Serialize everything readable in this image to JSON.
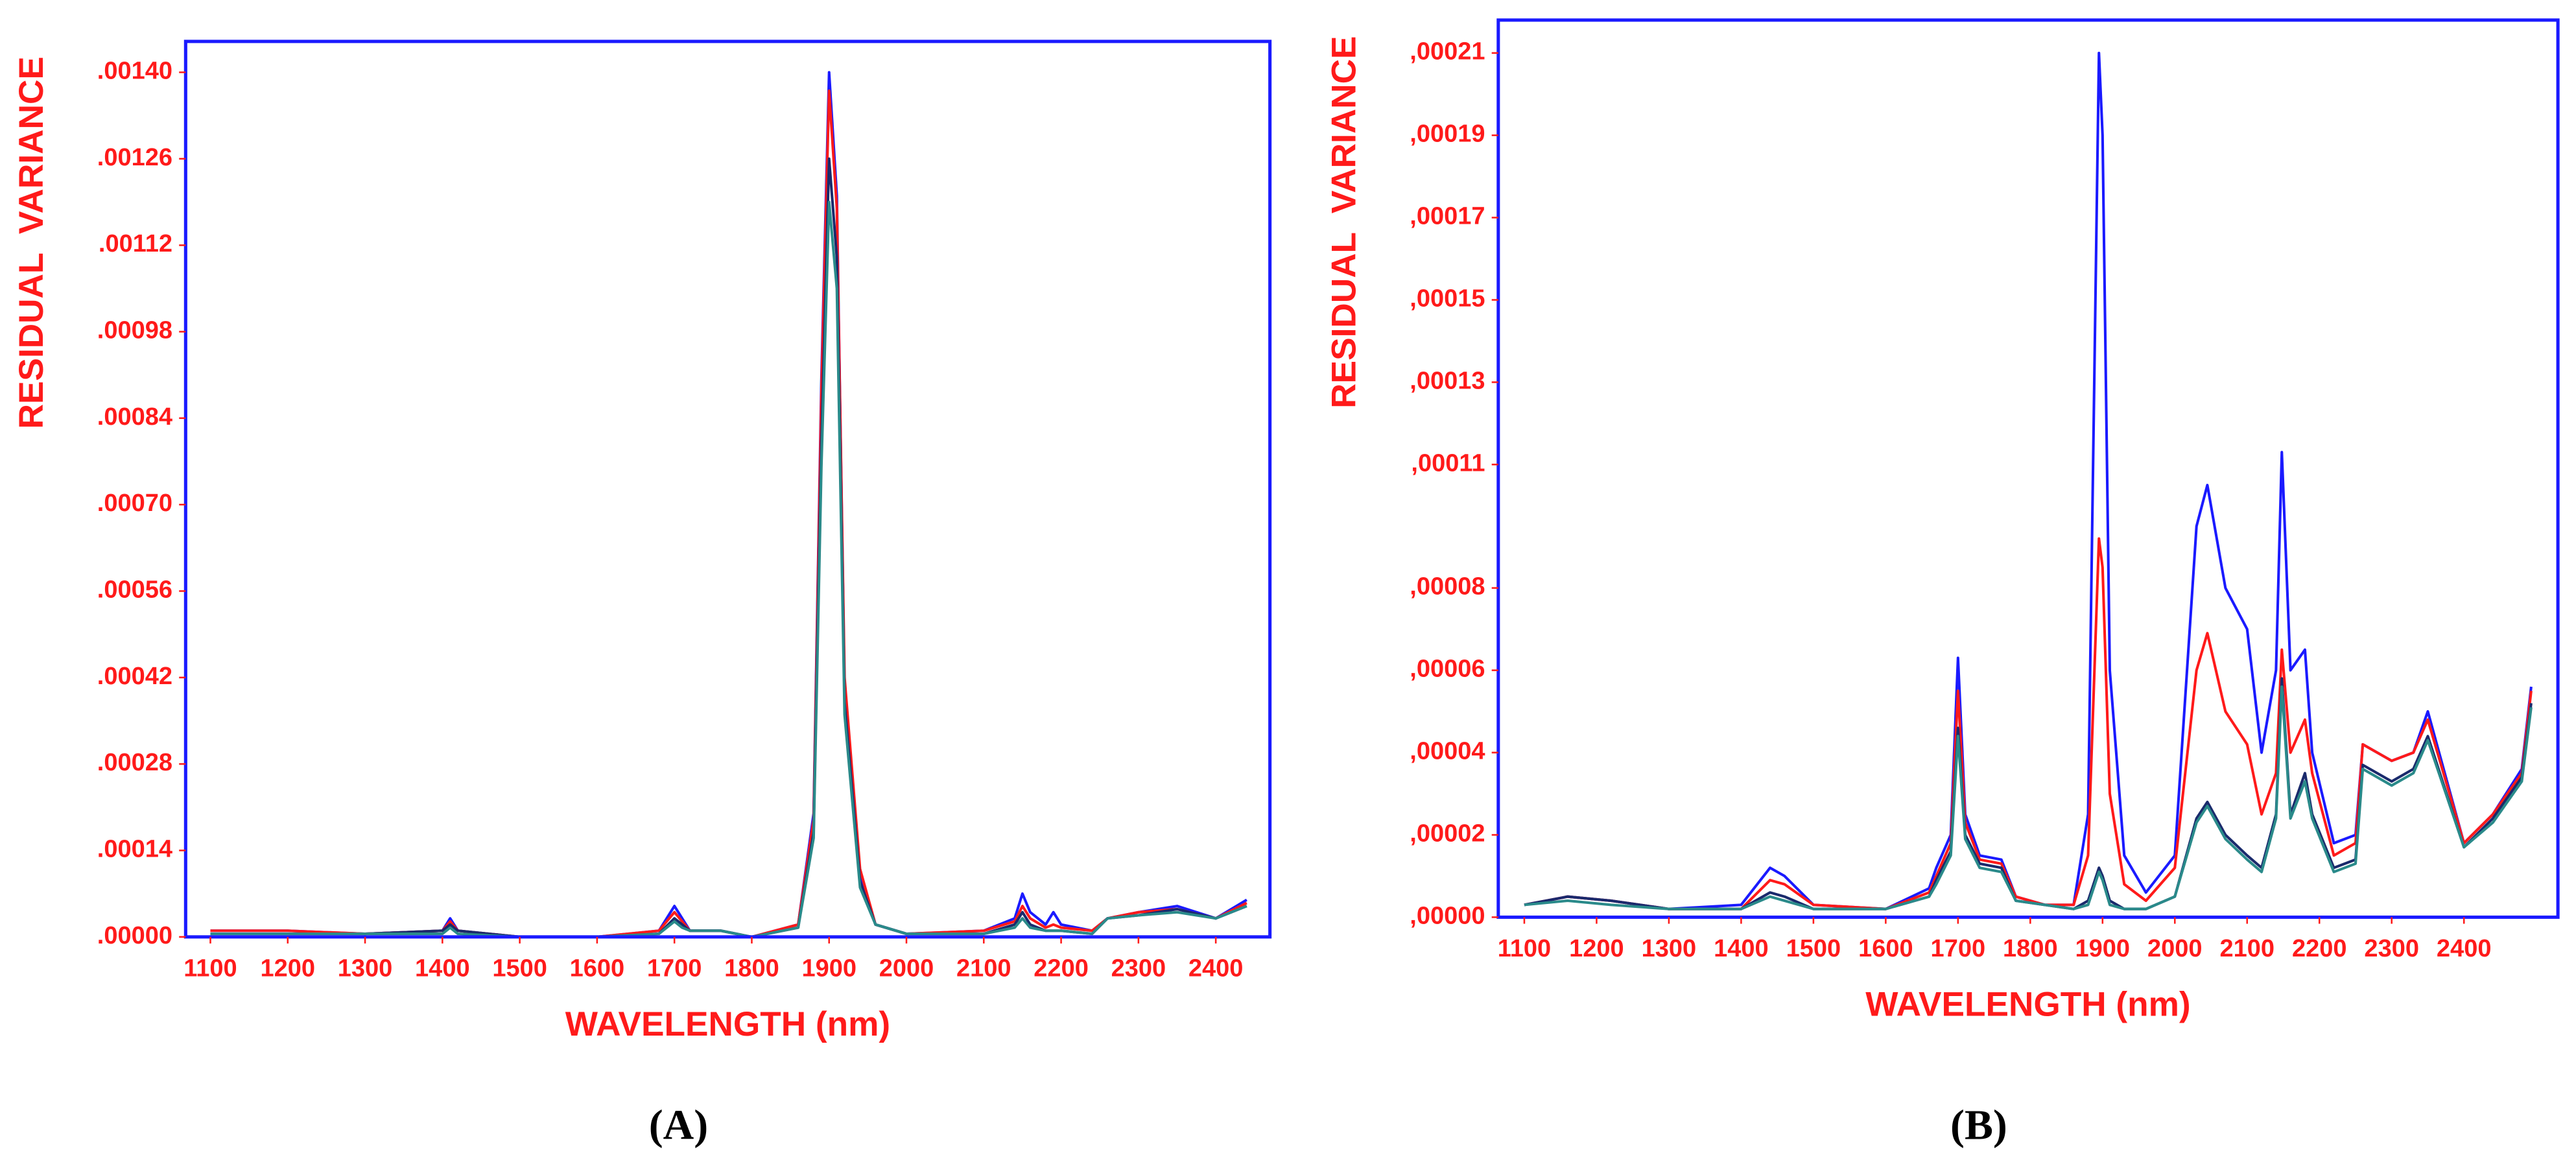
{
  "chart_data": [
    {
      "type": "line",
      "caption": "(A)",
      "x_label": "WAVELENGTH (nm)",
      "y_label": "RESIDUAL  VARIANCE",
      "xlim": [
        1068,
        2470
      ],
      "ylim": [
        0,
        0.00145
      ],
      "xticks": [
        1100,
        1200,
        1300,
        1400,
        1500,
        1600,
        1700,
        1800,
        1900,
        2000,
        2100,
        2200,
        2300,
        2400
      ],
      "yticks": [
        {
          "value": 0,
          "label": ".00000"
        },
        {
          "value": 0.00014,
          "label": ".00014"
        },
        {
          "value": 0.00028,
          "label": ".00028"
        },
        {
          "value": 0.00042,
          "label": ".00042"
        },
        {
          "value": 0.00056,
          "label": ".00056"
        },
        {
          "value": 0.0007,
          "label": ".00070"
        },
        {
          "value": 0.00084,
          "label": ".00084"
        },
        {
          "value": 0.00098,
          "label": ".00098"
        },
        {
          "value": 0.00112,
          "label": ".00112"
        },
        {
          "value": 0.00126,
          "label": ".00126"
        },
        {
          "value": 0.0014,
          "label": ".00140"
        }
      ],
      "x": [
        1100,
        1200,
        1300,
        1400,
        1410,
        1420,
        1500,
        1600,
        1680,
        1700,
        1710,
        1720,
        1760,
        1800,
        1860,
        1880,
        1890,
        1900,
        1910,
        1920,
        1940,
        1960,
        2000,
        2100,
        2140,
        2150,
        2160,
        2180,
        2190,
        2200,
        2240,
        2260,
        2300,
        2350,
        2400,
        2440
      ],
      "series": [
        {
          "color": "#1a1aff",
          "values": [
            1e-05,
            1e-05,
            5e-06,
            1e-05,
            3e-05,
            1e-05,
            0,
            0,
            1e-05,
            5e-05,
            3e-05,
            1e-05,
            1e-05,
            0,
            2e-05,
            0.0002,
            0.0009,
            0.0014,
            0.0012,
            0.0004,
            0.0001,
            2e-05,
            5e-06,
            1e-05,
            3e-05,
            7e-05,
            4e-05,
            2e-05,
            4e-05,
            2e-05,
            1e-05,
            3e-05,
            4e-05,
            5e-05,
            3e-05,
            6e-05
          ]
        },
        {
          "color": "#ff1a1a",
          "values": [
            1e-05,
            1e-05,
            5e-06,
            1e-05,
            2.5e-05,
            1e-05,
            0,
            0,
            1e-05,
            4e-05,
            2.5e-05,
            1e-05,
            1e-05,
            0,
            2e-05,
            0.00019,
            0.00088,
            0.00137,
            0.00118,
            0.00042,
            0.00011,
            2e-05,
            5e-06,
            1e-05,
            2.5e-05,
            5e-05,
            3e-05,
            1.5e-05,
            2e-05,
            1.5e-05,
            1e-05,
            3e-05,
            4e-05,
            4.5e-05,
            3e-05,
            5.5e-05
          ]
        },
        {
          "color": "#1a2a6c",
          "values": [
            5e-06,
            5e-06,
            5e-06,
            1e-05,
            2e-05,
            1e-05,
            0,
            0,
            5e-06,
            3e-05,
            2e-05,
            1e-05,
            1e-05,
            0,
            1.5e-05,
            0.00017,
            0.0008,
            0.00126,
            0.0011,
            0.00038,
            9e-05,
            2e-05,
            5e-06,
            5e-06,
            2e-05,
            4e-05,
            2e-05,
            1e-05,
            1e-05,
            1e-05,
            5e-06,
            3e-05,
            3.5e-05,
            4.5e-05,
            3e-05,
            5e-05
          ]
        },
        {
          "color": "#2a8a8a",
          "values": [
            5e-06,
            5e-06,
            5e-06,
            5e-06,
            1.5e-05,
            5e-06,
            0,
            0,
            5e-06,
            2.5e-05,
            1.5e-05,
            1e-05,
            1e-05,
            0,
            1.5e-05,
            0.00016,
            0.00076,
            0.00119,
            0.00105,
            0.00036,
            8e-05,
            2e-05,
            5e-06,
            5e-06,
            1.5e-05,
            3e-05,
            1.5e-05,
            1e-05,
            1e-05,
            1e-05,
            5e-06,
            3e-05,
            3.5e-05,
            4e-05,
            3e-05,
            5e-05
          ]
        }
      ]
    },
    {
      "type": "line",
      "caption": "(B)",
      "x_label": "WAVELENGTH (nm)",
      "y_label": "RESIDUAL  VARIANCE",
      "xlim": [
        1064,
        2530
      ],
      "ylim": [
        0,
        0.000218
      ],
      "xticks": [
        1100,
        1200,
        1300,
        1400,
        1500,
        1600,
        1700,
        1800,
        1900,
        2000,
        2100,
        2200,
        2300,
        2400
      ],
      "yticks": [
        {
          "value": 0,
          "label": ",00000"
        },
        {
          "value": 2e-05,
          "label": ",00002"
        },
        {
          "value": 4e-05,
          "label": ",00004"
        },
        {
          "value": 6e-05,
          "label": ",00006"
        },
        {
          "value": 8e-05,
          "label": ",00008"
        },
        {
          "value": 0.00011,
          "label": ",00011"
        },
        {
          "value": 0.00013,
          "label": ",00013"
        },
        {
          "value": 0.00015,
          "label": ",00015"
        },
        {
          "value": 0.00017,
          "label": ",00017"
        },
        {
          "value": 0.00019,
          "label": ",00019"
        },
        {
          "value": 0.00021,
          "label": ",00021"
        }
      ],
      "x": [
        1100,
        1160,
        1220,
        1300,
        1400,
        1440,
        1460,
        1500,
        1600,
        1660,
        1670,
        1690,
        1700,
        1710,
        1730,
        1760,
        1780,
        1820,
        1860,
        1880,
        1895,
        1900,
        1910,
        1930,
        1960,
        2000,
        2030,
        2045,
        2070,
        2100,
        2120,
        2140,
        2148,
        2160,
        2180,
        2190,
        2220,
        2250,
        2260,
        2300,
        2330,
        2350,
        2400,
        2440,
        2480,
        2493
      ],
      "series": [
        {
          "color": "#1a1aff",
          "values": [
            3e-06,
            5e-06,
            4e-06,
            2e-06,
            3e-06,
            1.2e-05,
            1e-05,
            3e-06,
            2e-06,
            7e-06,
            1.2e-05,
            2e-05,
            6.3e-05,
            2.5e-05,
            1.5e-05,
            1.4e-05,
            5e-06,
            3e-06,
            3e-06,
            2.5e-05,
            0.00021,
            0.00019,
            6e-05,
            1.5e-05,
            6e-06,
            1.5e-05,
            9.5e-05,
            0.000105,
            8e-05,
            7e-05,
            4e-05,
            6e-05,
            0.000113,
            6e-05,
            6.5e-05,
            4e-05,
            1.8e-05,
            2e-05,
            4.2e-05,
            3.8e-05,
            4e-05,
            5e-05,
            1.8e-05,
            2.5e-05,
            3.6e-05,
            5.6e-05
          ]
        },
        {
          "color": "#ff1a1a",
          "values": [
            3e-06,
            5e-06,
            4e-06,
            2e-06,
            2e-06,
            9e-06,
            8e-06,
            3e-06,
            2e-06,
            6e-06,
            1e-05,
            1.8e-05,
            5.5e-05,
            2.3e-05,
            1.4e-05,
            1.3e-05,
            5e-06,
            3e-06,
            3e-06,
            1.5e-05,
            9.2e-05,
            8.5e-05,
            3e-05,
            8e-06,
            4e-06,
            1.2e-05,
            6e-05,
            6.9e-05,
            5e-05,
            4.2e-05,
            2.5e-05,
            3.5e-05,
            6.5e-05,
            4e-05,
            4.8e-05,
            3.5e-05,
            1.5e-05,
            1.8e-05,
            4.2e-05,
            3.8e-05,
            4e-05,
            4.8e-05,
            1.8e-05,
            2.5e-05,
            3.5e-05,
            5.5e-05
          ]
        },
        {
          "color": "#1a2a6c",
          "values": [
            3e-06,
            5e-06,
            4e-06,
            2e-06,
            2e-06,
            6e-06,
            5e-06,
            2e-06,
            2e-06,
            5e-06,
            9e-06,
            1.6e-05,
            4.6e-05,
            2e-05,
            1.3e-05,
            1.2e-05,
            4e-06,
            3e-06,
            2e-06,
            4e-06,
            1.2e-05,
            1e-05,
            4e-06,
            2e-06,
            2e-06,
            5e-06,
            2.4e-05,
            2.8e-05,
            2e-05,
            1.5e-05,
            1.2e-05,
            2.5e-05,
            5.8e-05,
            2.5e-05,
            3.5e-05,
            2.5e-05,
            1.2e-05,
            1.4e-05,
            3.7e-05,
            3.3e-05,
            3.6e-05,
            4.4e-05,
            1.7e-05,
            2.4e-05,
            3.4e-05,
            5.2e-05
          ]
        },
        {
          "color": "#2a8a8a",
          "values": [
            3e-06,
            4e-06,
            3e-06,
            2e-06,
            2e-06,
            5e-06,
            4e-06,
            2e-06,
            2e-06,
            5e-06,
            8e-06,
            1.5e-05,
            4.4e-05,
            1.9e-05,
            1.2e-05,
            1.1e-05,
            4e-06,
            3e-06,
            2e-06,
            3e-06,
            1.1e-05,
            9e-06,
            3e-06,
            2e-06,
            2e-06,
            5e-06,
            2.3e-05,
            2.7e-05,
            1.9e-05,
            1.4e-05,
            1.1e-05,
            2.4e-05,
            5.6e-05,
            2.4e-05,
            3.3e-05,
            2.4e-05,
            1.1e-05,
            1.3e-05,
            3.6e-05,
            3.2e-05,
            3.5e-05,
            4.3e-05,
            1.7e-05,
            2.3e-05,
            3.3e-05,
            5.1e-05
          ]
        }
      ]
    }
  ]
}
